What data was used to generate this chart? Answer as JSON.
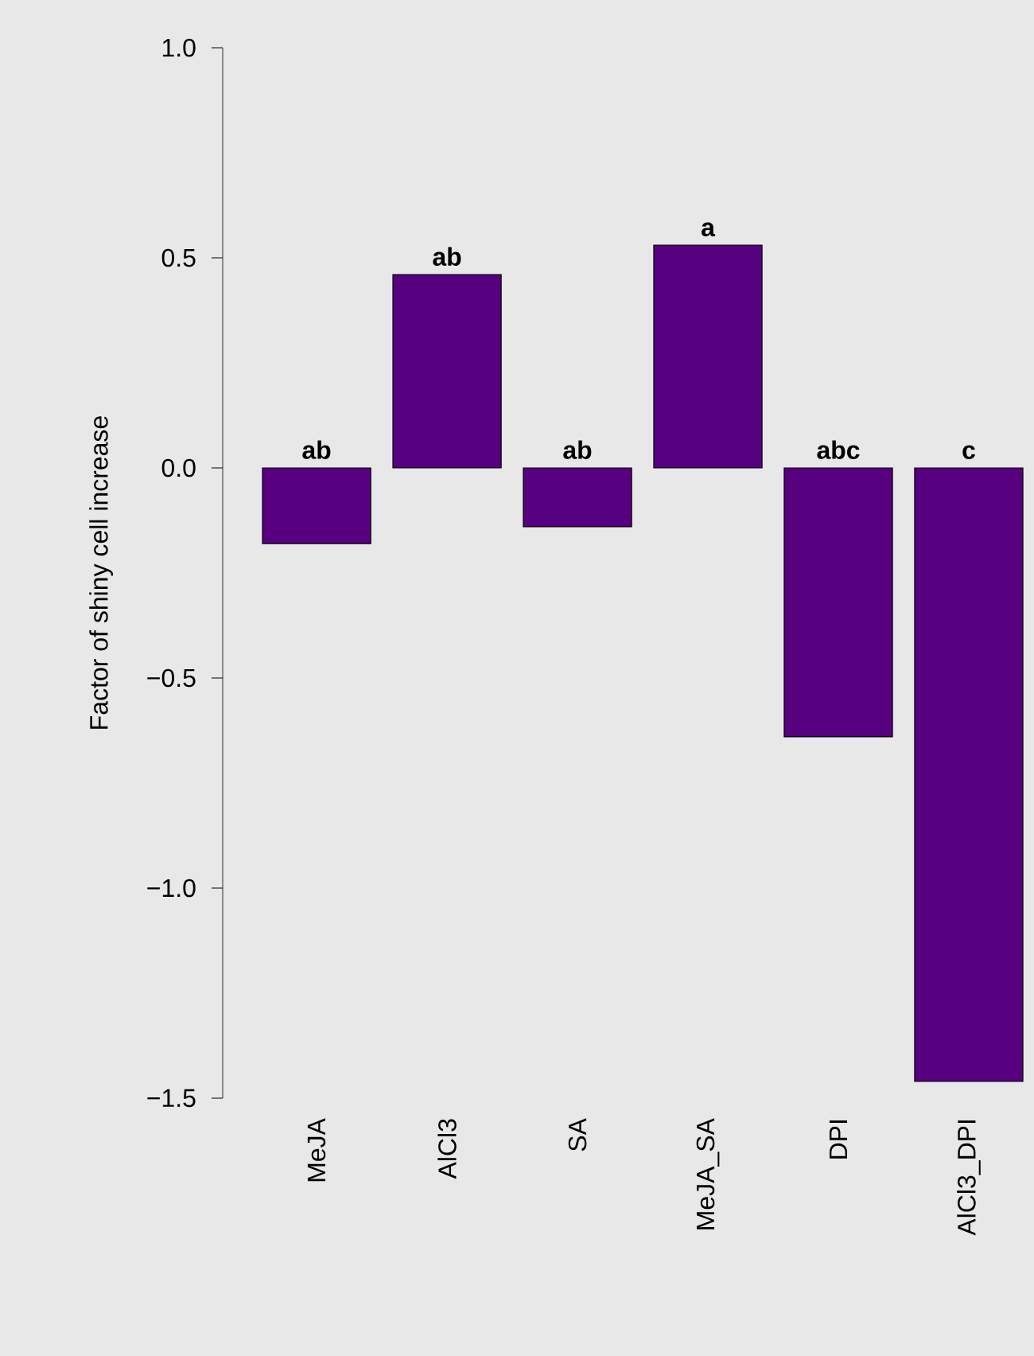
{
  "chart_data": {
    "type": "bar",
    "ylabel": "Factor of shiny cell increase",
    "categories": [
      "MeJA",
      "AlCl3",
      "SA",
      "MeJA_SA",
      "DPI",
      "AlCl3_DPI"
    ],
    "values": [
      -0.18,
      0.46,
      -0.14,
      0.53,
      -0.64,
      -1.46
    ],
    "color": "#570080",
    "ylim": [
      -1.5,
      1.0
    ],
    "yticks": [
      {
        "value": -1.5,
        "label": "−1.5"
      },
      {
        "value": -1.0,
        "label": "−1.0"
      },
      {
        "value": -0.5,
        "label": "−0.5"
      },
      {
        "value": 0.0,
        "label": "0.0"
      },
      {
        "value": 0.5,
        "label": "0.5"
      },
      {
        "value": 1.0,
        "label": "1.0"
      }
    ],
    "grid": false,
    "annotations": [
      {
        "text": "ab",
        "x": "MeJA",
        "y": 0
      },
      {
        "text": "ab",
        "x": "AlCl3",
        "y": 0.46
      },
      {
        "text": "ab",
        "x": "SA",
        "y": 0
      },
      {
        "text": "a",
        "x": "MeJA_SA",
        "y": 0.53
      },
      {
        "text": "abc",
        "x": "DPI",
        "y": 0
      },
      {
        "text": "c",
        "x": "AlCl3_DPI",
        "y": 0
      }
    ]
  }
}
